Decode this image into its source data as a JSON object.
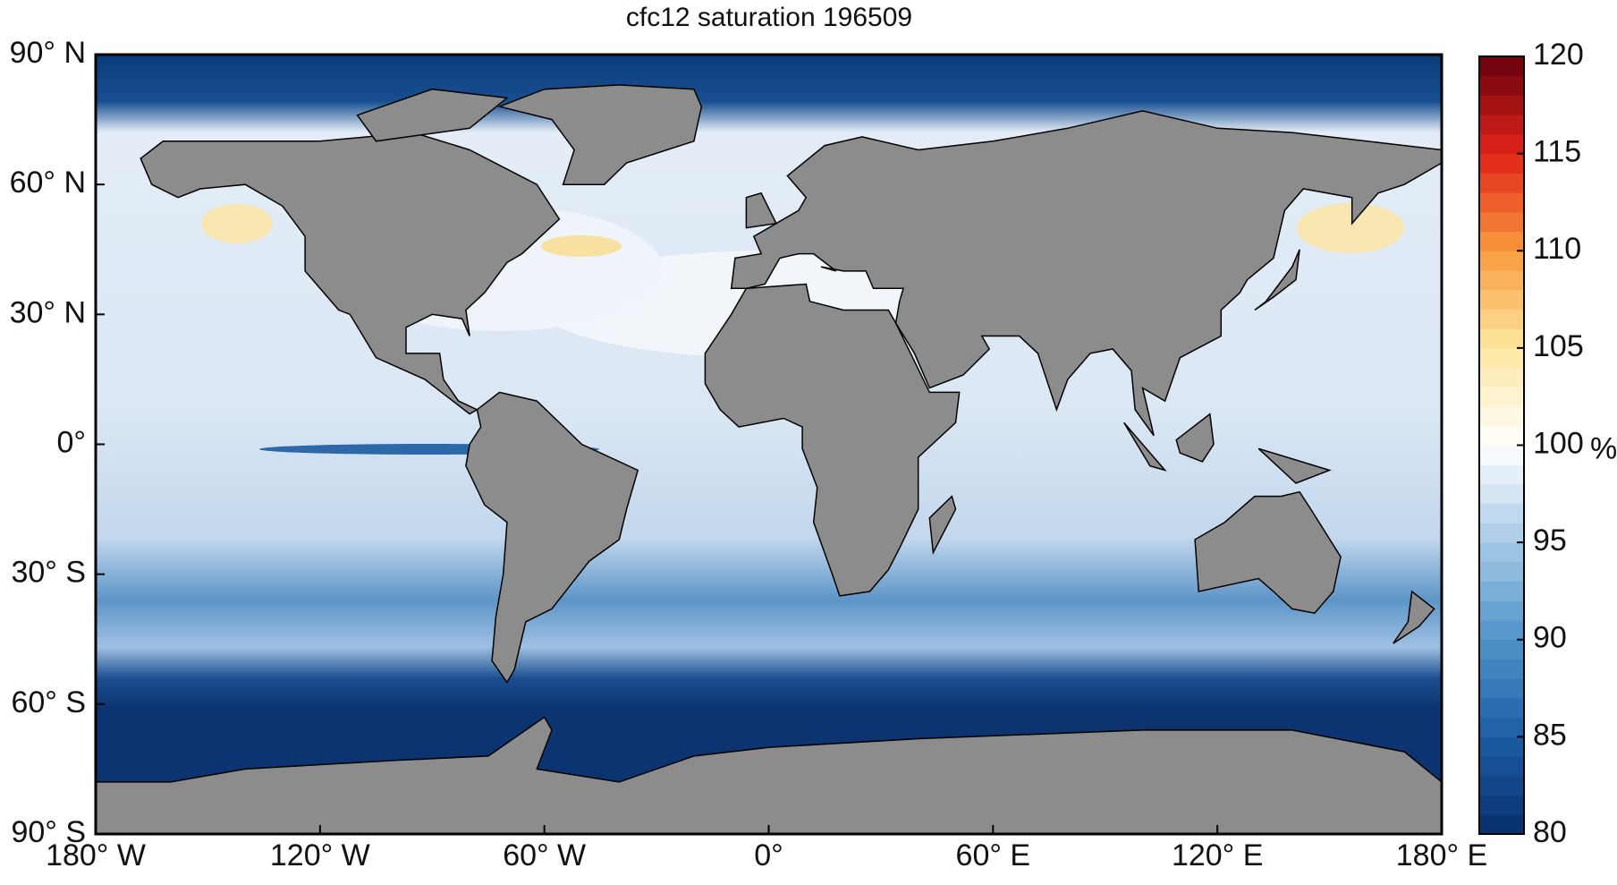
{
  "map": {
    "title": "cfc12 saturation 196509",
    "yticks": [
      {
        "value": 90,
        "label": "90° N"
      },
      {
        "value": 60,
        "label": "60° N"
      },
      {
        "value": 30,
        "label": "30° N"
      },
      {
        "value": 0,
        "label": "0°"
      },
      {
        "value": -30,
        "label": "30° S"
      },
      {
        "value": -60,
        "label": "60° S"
      },
      {
        "value": -90,
        "label": "90° S"
      }
    ],
    "ylim": [
      -90,
      90
    ],
    "xticks": [
      {
        "value": -180,
        "label": "180° W"
      },
      {
        "value": -120,
        "label": "120° W"
      },
      {
        "value": -60,
        "label": "60° W"
      },
      {
        "value": 0,
        "label": "0°"
      },
      {
        "value": 60,
        "label": "60° E"
      },
      {
        "value": 120,
        "label": "120° E"
      },
      {
        "value": 180,
        "label": "180° E"
      }
    ],
    "xlim": [
      -180,
      180
    ],
    "land_color": "#8c8c8c",
    "colorbar": {
      "label": "%",
      "lim": [
        80,
        120
      ],
      "ticks": [
        80,
        85,
        90,
        95,
        100,
        105,
        110,
        115,
        120
      ],
      "levels": 40,
      "colormap": [
        "#08306b",
        "#1c5ca6",
        "#4f93c9",
        "#a7c9e6",
        "#ffffff",
        "#fde7a0",
        "#f99a3d",
        "#e2231a",
        "#67000d"
      ]
    }
  }
}
